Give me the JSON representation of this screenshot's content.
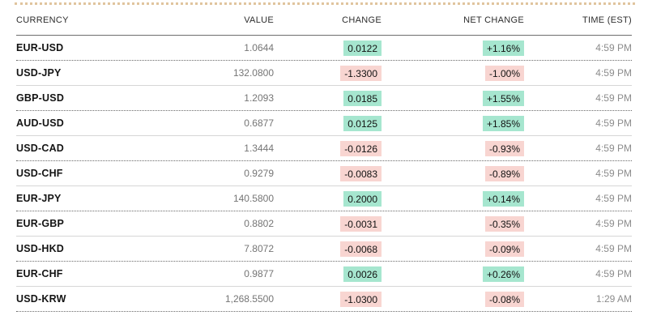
{
  "colors": {
    "positive_bg": "#a6e6cf",
    "negative_bg": "#f8d5d1",
    "accent_top_line": "#e0c49e"
  },
  "table": {
    "headers": {
      "currency": "CURRENCY",
      "value": "VALUE",
      "change": "CHANGE",
      "net_change": "NET CHANGE",
      "time": "TIME (EST)"
    },
    "rows": [
      {
        "pair": "EUR-USD",
        "value": "1.0644",
        "change": "0.0122",
        "net_change": "+1.16%",
        "time": "4:59 PM",
        "direction": "up"
      },
      {
        "pair": "USD-JPY",
        "value": "132.0800",
        "change": "-1.3300",
        "net_change": "-1.00%",
        "time": "4:59 PM",
        "direction": "down"
      },
      {
        "pair": "GBP-USD",
        "value": "1.2093",
        "change": "0.0185",
        "net_change": "+1.55%",
        "time": "4:59 PM",
        "direction": "up"
      },
      {
        "pair": "AUD-USD",
        "value": "0.6877",
        "change": "0.0125",
        "net_change": "+1.85%",
        "time": "4:59 PM",
        "direction": "up"
      },
      {
        "pair": "USD-CAD",
        "value": "1.3444",
        "change": "-0.0126",
        "net_change": "-0.93%",
        "time": "4:59 PM",
        "direction": "down"
      },
      {
        "pair": "USD-CHF",
        "value": "0.9279",
        "change": "-0.0083",
        "net_change": "-0.89%",
        "time": "4:59 PM",
        "direction": "down"
      },
      {
        "pair": "EUR-JPY",
        "value": "140.5800",
        "change": "0.2000",
        "net_change": "+0.14%",
        "time": "4:59 PM",
        "direction": "up"
      },
      {
        "pair": "EUR-GBP",
        "value": "0.8802",
        "change": "-0.0031",
        "net_change": "-0.35%",
        "time": "4:59 PM",
        "direction": "down"
      },
      {
        "pair": "USD-HKD",
        "value": "7.8072",
        "change": "-0.0068",
        "net_change": "-0.09%",
        "time": "4:59 PM",
        "direction": "down"
      },
      {
        "pair": "EUR-CHF",
        "value": "0.9877",
        "change": "0.0026",
        "net_change": "+0.26%",
        "time": "4:59 PM",
        "direction": "up"
      },
      {
        "pair": "USD-KRW",
        "value": "1,268.5500",
        "change": "-1.0300",
        "net_change": "-0.08%",
        "time": "1:29 AM",
        "direction": "down"
      }
    ]
  }
}
